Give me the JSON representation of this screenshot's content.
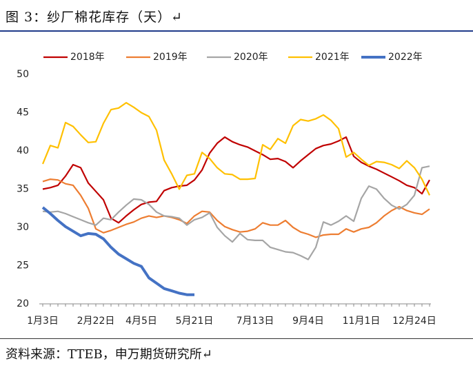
{
  "header": {
    "title": "图 3：纱厂棉花库存（天）↵"
  },
  "chart_data": {
    "type": "line",
    "categories": [
      "1月3日",
      null,
      null,
      null,
      null,
      null,
      null,
      "2月22日",
      null,
      null,
      null,
      null,
      null,
      "4月5日",
      null,
      null,
      null,
      null,
      null,
      null,
      "5月21日",
      null,
      null,
      null,
      null,
      null,
      null,
      null,
      "7月13日",
      null,
      null,
      null,
      null,
      null,
      null,
      "9月4日",
      null,
      null,
      null,
      null,
      null,
      null,
      "11月1日",
      null,
      null,
      null,
      null,
      null,
      null,
      "12月24日",
      null,
      null
    ],
    "ylim": [
      20,
      50
    ],
    "yticks": [
      20,
      25,
      30,
      35,
      40,
      45,
      50
    ],
    "grid": false,
    "legend": "top",
    "series": [
      {
        "name": "2018年",
        "color": "#c00000",
        "values": [
          35.0,
          35.2,
          35.5,
          36.7,
          38.2,
          37.8,
          35.8,
          34.7,
          33.6,
          31.2,
          30.6,
          31.5,
          32.3,
          33.0,
          33.3,
          33.4,
          34.8,
          35.2,
          35.4,
          35.5,
          36.2,
          37.5,
          39.7,
          41.0,
          41.8,
          41.2,
          40.8,
          40.5,
          40.0,
          39.5,
          38.9,
          39.0,
          38.6,
          37.8,
          38.7,
          39.5,
          40.3,
          40.7,
          40.9,
          41.3,
          41.8,
          39.3,
          38.5,
          38.0,
          37.6,
          37.1,
          36.6,
          36.1,
          35.5,
          35.2,
          34.4,
          36.2
        ]
      },
      {
        "name": "2019年",
        "color": "#ed7d31",
        "values": [
          36.0,
          36.3,
          36.2,
          35.7,
          35.5,
          34.2,
          32.5,
          29.8,
          29.3,
          29.6,
          30.0,
          30.4,
          30.7,
          31.2,
          31.5,
          31.3,
          31.5,
          31.3,
          31.0,
          30.5,
          31.5,
          32.1,
          32.0,
          30.9,
          30.1,
          29.7,
          29.4,
          29.5,
          29.8,
          30.6,
          30.3,
          30.3,
          30.9,
          30.0,
          29.4,
          29.1,
          28.7,
          29.0,
          29.1,
          29.1,
          29.8,
          29.4,
          29.8,
          30.0,
          30.6,
          31.5,
          32.2,
          32.7,
          32.2,
          31.9,
          31.7,
          32.4
        ]
      },
      {
        "name": "2020年",
        "color": "#a5a5a5",
        "values": [
          32.1,
          32.0,
          32.1,
          31.8,
          31.4,
          31.0,
          30.6,
          30.3,
          31.2,
          31.0,
          32.0,
          32.9,
          33.7,
          33.6,
          33.0,
          32.0,
          31.5,
          31.4,
          31.2,
          30.3,
          31.0,
          31.3,
          31.9,
          30.0,
          28.9,
          28.1,
          29.2,
          28.4,
          28.3,
          28.3,
          27.4,
          27.1,
          26.8,
          26.7,
          26.3,
          25.8,
          27.4,
          30.7,
          30.3,
          30.8,
          31.5,
          30.8,
          33.8,
          35.4,
          35.0,
          33.8,
          32.9,
          32.4,
          33.0,
          34.2,
          37.8,
          38.0
        ]
      },
      {
        "name": "2021年",
        "color": "#ffc000",
        "values": [
          38.3,
          40.7,
          40.4,
          43.7,
          43.2,
          42.1,
          41.1,
          41.2,
          43.6,
          45.4,
          45.6,
          46.3,
          45.7,
          45.0,
          44.5,
          42.7,
          38.8,
          37.0,
          35.0,
          36.8,
          37.0,
          39.8,
          39.0,
          37.8,
          37.0,
          36.9,
          36.3,
          36.3,
          36.4,
          40.8,
          40.2,
          41.6,
          41.0,
          43.3,
          44.1,
          43.9,
          44.2,
          44.7,
          44.0,
          42.9,
          39.2,
          39.8,
          38.9,
          38.1,
          38.6,
          38.5,
          38.2,
          37.7,
          38.7,
          37.8,
          36.3,
          34.2
        ]
      },
      {
        "name": "2022年",
        "color": "#4472c4",
        "values": [
          32.6,
          31.8,
          30.9,
          30.1,
          29.5,
          28.9,
          29.2,
          29.1,
          28.5,
          27.4,
          26.5,
          25.9,
          25.3,
          24.9,
          23.4,
          22.7,
          22.0,
          21.7,
          21.4,
          21.2,
          21.2,
          null,
          null,
          null,
          null,
          null,
          null,
          null,
          null,
          null,
          null,
          null,
          null,
          null,
          null,
          null,
          null,
          null,
          null,
          null,
          null,
          null,
          null,
          null,
          null,
          null,
          null,
          null,
          null,
          null,
          null,
          null
        ]
      }
    ]
  },
  "source": "资料来源：TTEB，申万期货研究所↵"
}
